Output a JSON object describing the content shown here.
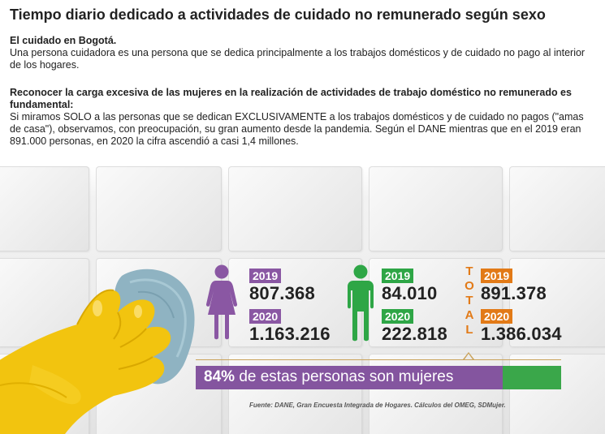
{
  "header": {
    "title": "Tiempo diario dedicado a actividades de cuidado no remunerado según sexo"
  },
  "section1": {
    "heading": "El cuidado en Bogotá.",
    "body": "Una persona cuidadora es una persona que se dedica principalmente a los trabajos domésticos y de cuidado no pago al interior de los hogares."
  },
  "section2": {
    "heading": "Reconocer la carga excesiva de las mujeres en la realización de actividades de trabajo doméstico no remunerado es fundamental:",
    "body": "Si miramos SOLO a las personas que se dedican EXCLUSIVAMENTE a los trabajos domésticos y de cuidado no pagos (\"amas de casa\"), observamos, con preocupación, su gran aumento desde la pandemia. Según el DANE mientras que en el 2019 eran 891.000 personas, en 2020 la cifra ascendió a casi 1,4 millones."
  },
  "stats": {
    "women": {
      "icon": "female-person-icon",
      "color": "#8a57a3",
      "year1": "2019",
      "value1": "807.368",
      "year2": "2020",
      "value2": "1.163.216"
    },
    "men": {
      "icon": "male-person-icon",
      "color": "#2ea646",
      "year1": "2019",
      "value1": "84.010",
      "year2": "2020",
      "value2": "222.818"
    },
    "total": {
      "label_letters": [
        "T",
        "O",
        "T",
        "A",
        "L"
      ],
      "color": "#e27a17",
      "year1": "2019",
      "value1": "891.378",
      "year2": "2020",
      "value2": "1.386.034"
    }
  },
  "banner": {
    "percent": "84%",
    "text": "de estas personas son mujeres",
    "fill_fraction": 0.84
  },
  "source": "Fuente: DANE, Gran Encuesta Integrada de Hogares. Cálculos del OMEG, SDMujer."
}
